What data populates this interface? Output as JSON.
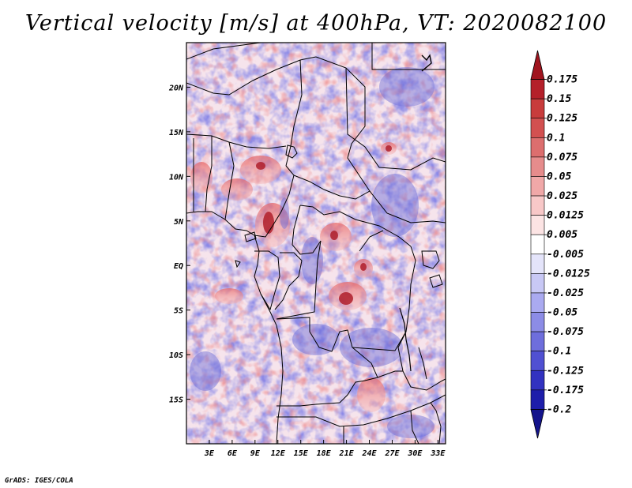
{
  "title": "Vertical velocity [m/s] at 400hPa, VT: 2020082100",
  "credit": "GrADS: IGES/COLA",
  "chart_data": {
    "type": "heatmap",
    "variable": "Vertical velocity",
    "units": "m/s",
    "level": "400hPa",
    "valid_time": "2020082100",
    "lon_range": [
      0,
      34
    ],
    "lat_range": [
      -20,
      25
    ],
    "x_ticks": [
      "3E",
      "6E",
      "9E",
      "12E",
      "15E",
      "18E",
      "21E",
      "24E",
      "27E",
      "30E",
      "33E"
    ],
    "x_tick_values": [
      3,
      6,
      9,
      12,
      15,
      18,
      21,
      24,
      27,
      30,
      33
    ],
    "y_ticks": [
      "20N",
      "15N",
      "10N",
      "5N",
      "EQ",
      "5S",
      "10S",
      "15S"
    ],
    "y_tick_values": [
      20,
      15,
      10,
      5,
      0,
      -5,
      -10,
      -15
    ],
    "colorbar_labels": [
      "0.175",
      "0.15",
      "0.125",
      "0.1",
      "0.075",
      "0.05",
      "0.025",
      "0.0125",
      "0.005",
      "-0.005",
      "-0.0125",
      "-0.025",
      "-0.05",
      "-0.075",
      "-0.1",
      "-0.125",
      "-0.175",
      "-0.2"
    ],
    "colorbar_colors": [
      "#a0141e",
      "#b4202a",
      "#c83c3c",
      "#d25050",
      "#dc6e6e",
      "#e68c8c",
      "#f0a8a8",
      "#f8c8c8",
      "#fce4e4",
      "#ffffff",
      "#e4e4fa",
      "#c8c8f5",
      "#aaaaf0",
      "#8c8ce6",
      "#6e6edc",
      "#5050d2",
      "#3232c0",
      "#1e1eaa",
      "#14148c"
    ]
  }
}
